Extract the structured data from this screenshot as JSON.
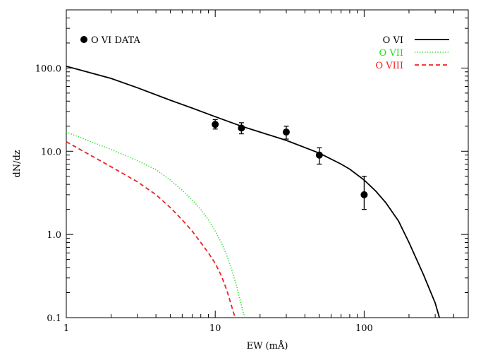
{
  "chart_data": {
    "type": "line",
    "xlabel": "EW (mÅ)",
    "ylabel": "dN/dz",
    "xscale": "log",
    "yscale": "log",
    "xlim": [
      1,
      500
    ],
    "ylim": [
      0.1,
      500
    ],
    "grid": false,
    "legend_placement": "top-right",
    "x_tick_labels": [
      "1",
      "10",
      "100"
    ],
    "y_tick_labels": [
      "0.1",
      "1.0",
      "10.0",
      "100.0"
    ],
    "series": [
      {
        "name": "O VI",
        "style": "solid",
        "color": "#000000",
        "x": [
          1,
          2,
          3,
          5,
          7,
          10,
          15,
          20,
          30,
          50,
          70,
          80,
          100,
          120,
          140,
          170,
          200,
          250,
          300,
          320
        ],
        "y": [
          105,
          75,
          58,
          41,
          33,
          26,
          20,
          17,
          13.5,
          9.5,
          7.0,
          6.1,
          4.5,
          3.3,
          2.4,
          1.45,
          0.8,
          0.33,
          0.15,
          0.1
        ]
      },
      {
        "name": "O VII",
        "style": "dotted",
        "color": "#22dd22",
        "x": [
          1,
          2,
          3,
          4,
          5,
          6,
          7,
          8,
          9,
          10,
          11,
          12,
          13,
          14,
          15,
          15.8
        ],
        "y": [
          17,
          10.5,
          7.7,
          6.0,
          4.5,
          3.4,
          2.6,
          2.0,
          1.5,
          1.1,
          0.8,
          0.55,
          0.36,
          0.23,
          0.14,
          0.1
        ]
      },
      {
        "name": "O VIII",
        "style": "dashed",
        "color": "#ee2222",
        "x": [
          1,
          2,
          3,
          4,
          5,
          6,
          7,
          8,
          9,
          10,
          11,
          12,
          13,
          13.6
        ],
        "y": [
          13,
          6.5,
          4.3,
          3.0,
          2.1,
          1.5,
          1.1,
          0.8,
          0.6,
          0.45,
          0.32,
          0.21,
          0.13,
          0.1
        ]
      }
    ],
    "data_points": {
      "name": "O VI DATA",
      "marker": "filled-circle",
      "color": "#000000",
      "points": [
        {
          "x": 10,
          "y": 21,
          "ylow": 18.5,
          "yhigh": 24
        },
        {
          "x": 15,
          "y": 19,
          "ylow": 16.2,
          "yhigh": 22
        },
        {
          "x": 30,
          "y": 17,
          "ylow": 14,
          "yhigh": 20
        },
        {
          "x": 50,
          "y": 9,
          "ylow": 7,
          "yhigh": 11
        },
        {
          "x": 100,
          "y": 3,
          "ylow": 2,
          "yhigh": 5
        }
      ]
    }
  }
}
